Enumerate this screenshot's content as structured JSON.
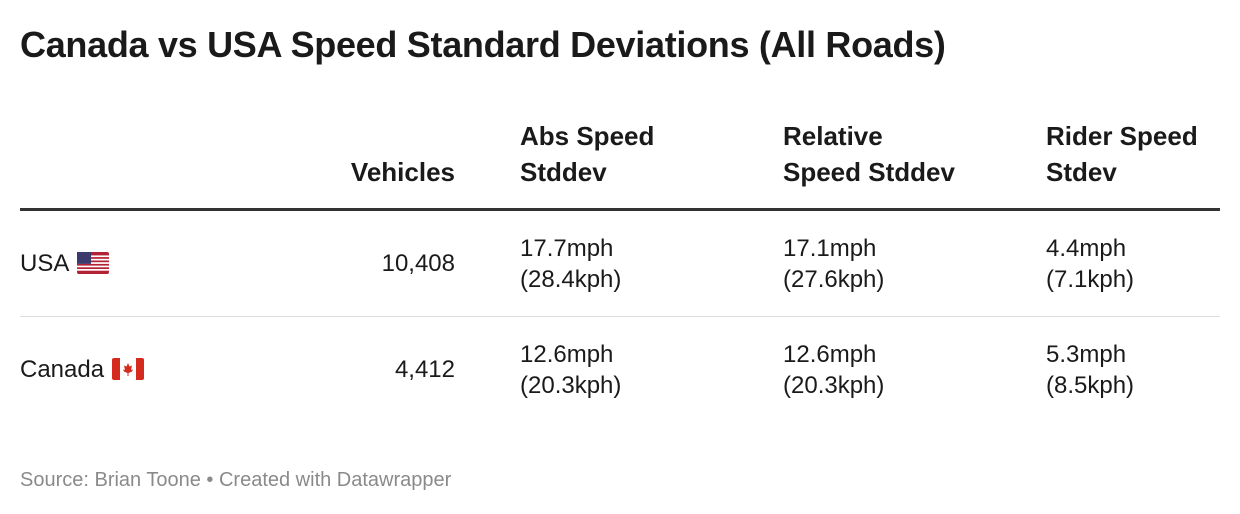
{
  "title": "Canada vs USA Speed Standard Deviations (All Roads)",
  "table": {
    "header": [
      [
        "Vehicles"
      ],
      [
        "Abs Speed",
        "Stddev"
      ],
      [
        "Relative",
        "Speed Stddev"
      ],
      [
        "Rider Speed",
        "Stdev"
      ]
    ],
    "rows": [
      [
        "USA",
        "10,408",
        [
          "17.7mph",
          "(28.4kph)"
        ],
        [
          "17.1mph",
          "(27.6kph)"
        ],
        [
          "4.4mph",
          "(7.1kph)"
        ]
      ],
      [
        "Canada",
        "4,412",
        [
          "12.6mph",
          "(20.3kph)"
        ],
        [
          "12.6mph",
          "(20.3kph)"
        ],
        [
          "5.3mph",
          "(8.5kph)"
        ]
      ]
    ]
  },
  "source": "Source: Brian Toone • Created with Datawrapper"
}
